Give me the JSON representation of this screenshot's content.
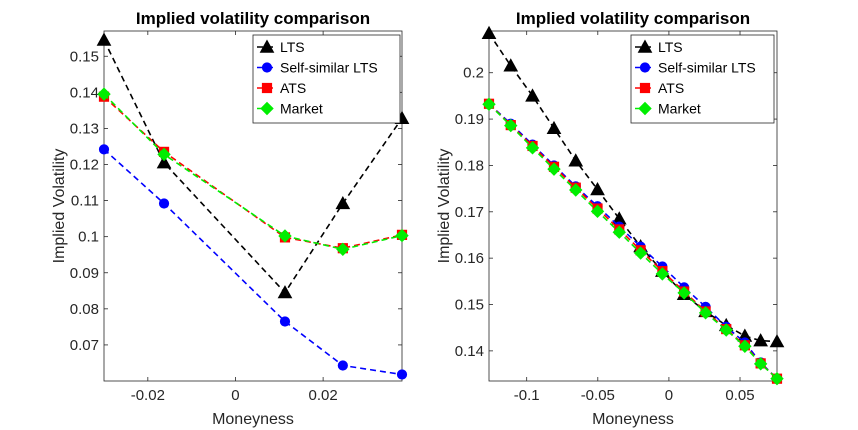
{
  "chart_data": [
    {
      "type": "line",
      "title": "Implied volatility comparison",
      "xlabel": "Moneyness",
      "ylabel": "Implied Volatility",
      "xlim": [
        -0.03,
        0.038
      ],
      "ylim": [
        0.06,
        0.157
      ],
      "xticks": [
        -0.02,
        0,
        0.02
      ],
      "xtick_labels": [
        "-0.02",
        "0",
        "0.02"
      ],
      "yticks": [
        0.07,
        0.08,
        0.09,
        0.1,
        0.11,
        0.12,
        0.13,
        0.14,
        0.15
      ],
      "ytick_labels": [
        "0.07",
        "0.08",
        "0.09",
        "0.1",
        "0.11",
        "0.12",
        "0.13",
        "0.14",
        "0.15"
      ],
      "x": [
        -0.03,
        -0.0163,
        0.0113,
        0.0245,
        0.038
      ],
      "legend_position": "top-right",
      "series": [
        {
          "name": "LTS",
          "color": "#000000",
          "marker": "triangle",
          "values": [
            0.1545,
            0.1205,
            0.0845,
            0.1092,
            0.1328
          ]
        },
        {
          "name": "Self-similar LTS",
          "color": "#0000ff",
          "marker": "circle",
          "values": [
            0.1242,
            0.1092,
            0.0765,
            0.0643,
            0.0618
          ]
        },
        {
          "name": "ATS",
          "color": "#ff0000",
          "marker": "square",
          "values": [
            0.1388,
            0.1235,
            0.0998,
            0.0968,
            0.1005
          ]
        },
        {
          "name": "Market",
          "color": "#00ee00",
          "marker": "diamond",
          "values": [
            0.1395,
            0.1228,
            0.1002,
            0.0965,
            0.1003
          ]
        }
      ]
    },
    {
      "type": "line",
      "title": "Implied volatility comparison",
      "xlabel": "Moneyness",
      "ylabel": "Implied Volatility",
      "xlim": [
        -0.1265,
        0.076
      ],
      "ylim": [
        0.1335,
        0.209
      ],
      "xticks": [
        -0.1,
        -0.05,
        0,
        0.05
      ],
      "xtick_labels": [
        "-0.1",
        "-0.05",
        "0",
        "0.05"
      ],
      "yticks": [
        0.14,
        0.15,
        0.16,
        0.17,
        0.18,
        0.19,
        0.2
      ],
      "ytick_labels": [
        "0.14",
        "0.15",
        "0.16",
        "0.17",
        "0.18",
        "0.19",
        "0.2"
      ],
      "x": [
        -0.1265,
        -0.1112,
        -0.0959,
        -0.0808,
        -0.0655,
        -0.0502,
        -0.0349,
        -0.0199,
        -0.0046,
        0.0107,
        0.0258,
        0.0403,
        0.0534,
        0.0645,
        0.076
      ],
      "legend_position": "top-right",
      "series": [
        {
          "name": "LTS",
          "color": "#000000",
          "marker": "triangle",
          "values": [
            0.2085,
            0.2015,
            0.195,
            0.188,
            0.181,
            0.1748,
            0.1685,
            0.1625,
            0.1572,
            0.1522,
            0.1485,
            0.1455,
            0.1432,
            0.1422,
            0.142
          ]
        },
        {
          "name": "Self-similar LTS",
          "color": "#0000ff",
          "marker": "circle",
          "values": [
            0.1933,
            0.189,
            0.1845,
            0.18,
            0.1755,
            0.1712,
            0.1668,
            0.1625,
            0.1582,
            0.1537,
            0.1495,
            0.1452,
            0.1418,
            0.1375,
            0.134
          ]
        },
        {
          "name": "ATS",
          "color": "#ff0000",
          "marker": "square",
          "values": [
            0.1933,
            0.1887,
            0.1842,
            0.1797,
            0.1752,
            0.1707,
            0.1662,
            0.1617,
            0.1572,
            0.1528,
            0.1485,
            0.1447,
            0.1412,
            0.1373,
            0.134
          ]
        },
        {
          "name": "Market",
          "color": "#00ee00",
          "marker": "diamond",
          "values": [
            0.1932,
            0.1886,
            0.1838,
            0.1792,
            0.1747,
            0.1701,
            0.1656,
            0.1611,
            0.1566,
            0.1525,
            0.1482,
            0.1445,
            0.141,
            0.1372,
            0.134
          ]
        }
      ]
    }
  ]
}
